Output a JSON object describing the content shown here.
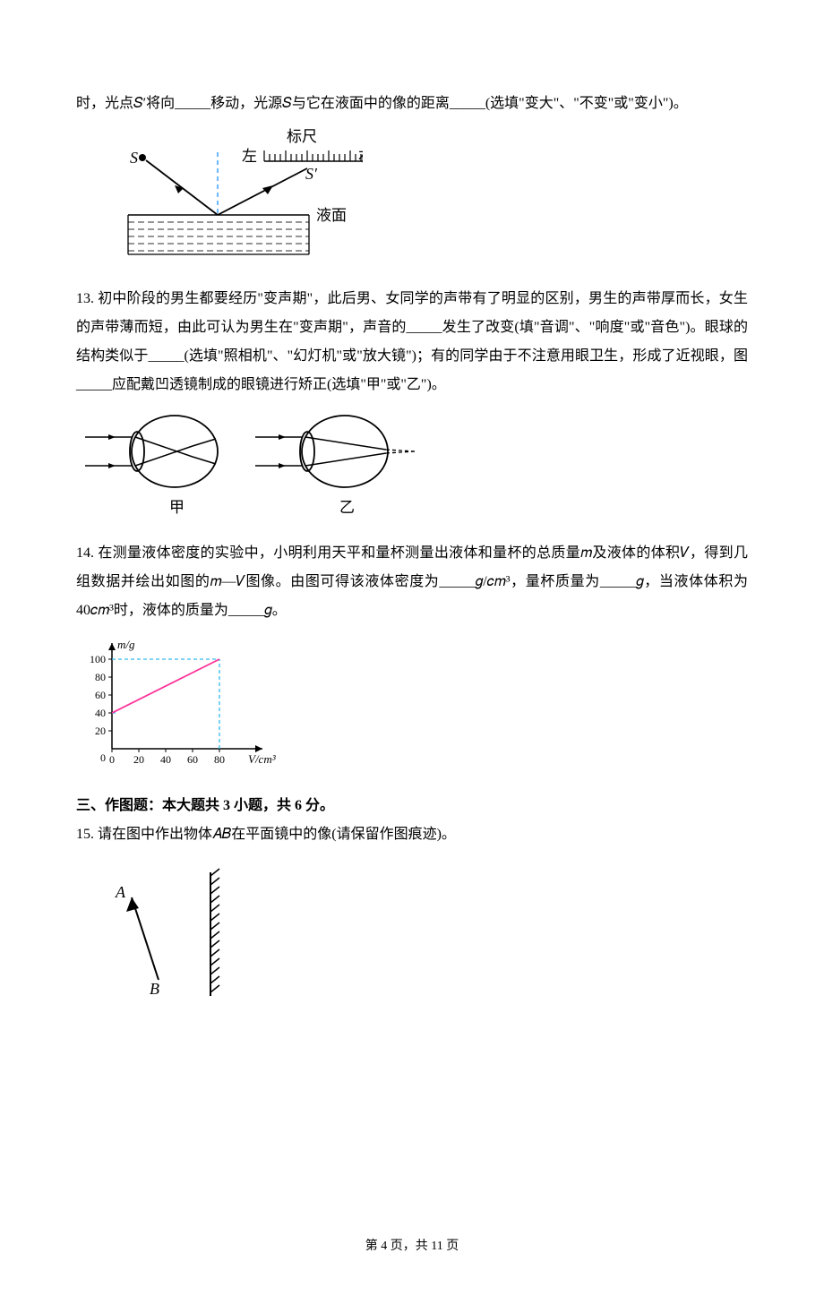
{
  "q12": {
    "line": "时，光点𝑆′将向_____移动，光源𝑆与它在液面中的像的距离_____(选填\"变大\"、\"不变\"或\"变小\")。",
    "fig": {
      "label_ruler": "标尺",
      "label_left": "左",
      "label_right": "右",
      "label_S": "S",
      "label_Sp": "S′",
      "label_surface": "液面",
      "color_line": "#000000",
      "color_normal": "#4aa6ff",
      "color_liquid": "#2c2c2c"
    }
  },
  "q13": {
    "text": "13. 初中阶段的男生都要经历\"变声期\"，此后男、女同学的声带有了明显的区别，男生的声带厚而长，女生的声带薄而短，由此可认为男生在\"变声期\"，声音的_____发生了改变(填\"音调\"、\"响度\"或\"音色\")。眼球的结构类似于_____(选填\"照相机\"、\"幻灯机\"或\"放大镜\")；有的同学由于不注意用眼卫生，形成了近视眼，图_____应配戴凹透镜制成的眼镜进行矫正(选填\"甲\"或\"乙\")。",
    "fig": {
      "label_a": "甲",
      "label_b": "乙"
    }
  },
  "q14": {
    "text_before": "14. 在测量液体密度的实验中，小明利用天平和量杯测量出液体和量杯的总质量𝑚及液体的体积𝑉，得到几组数据并绘出如图的𝑚—𝑉图像。由图可得该液体密度为_____",
    "unit1": "𝑔/𝑐𝑚³",
    "text_mid1": "，量杯质量为_____",
    "unit2": "𝑔",
    "text_mid2": "，当液体体积为",
    "vol": "40𝑐𝑚³",
    "text_after": "时，液体的质量为_____",
    "unit3": "𝑔。",
    "chart": {
      "type": "line",
      "x_label": "V/cm³",
      "y_label": "m/g",
      "x_ticks": [
        0,
        20,
        40,
        60,
        80
      ],
      "y_ticks": [
        0,
        20,
        40,
        60,
        80,
        100
      ],
      "xlim": [
        0,
        100
      ],
      "ylim": [
        0,
        110
      ],
      "data_line": [
        [
          0,
          40
        ],
        [
          80,
          100
        ]
      ],
      "guide_v": [
        80
      ],
      "guide_h": [
        100,
        40
      ],
      "line_color": "#ff3399",
      "guide_color": "#33bbee",
      "axis_color": "#000000",
      "bg": "#ffffff",
      "tick_font": 12,
      "label_font": 13
    }
  },
  "section3": {
    "title": "三、作图题：本大题共 3 小题，共 6 分。"
  },
  "q15": {
    "text": "15. 请在图中作出物体𝐴𝐵在平面镜中的像(请保留作图痕迹)。",
    "fig": {
      "label_A": "A",
      "label_B": "B"
    }
  },
  "footer": {
    "text": "第 4 页，共 11 页"
  }
}
